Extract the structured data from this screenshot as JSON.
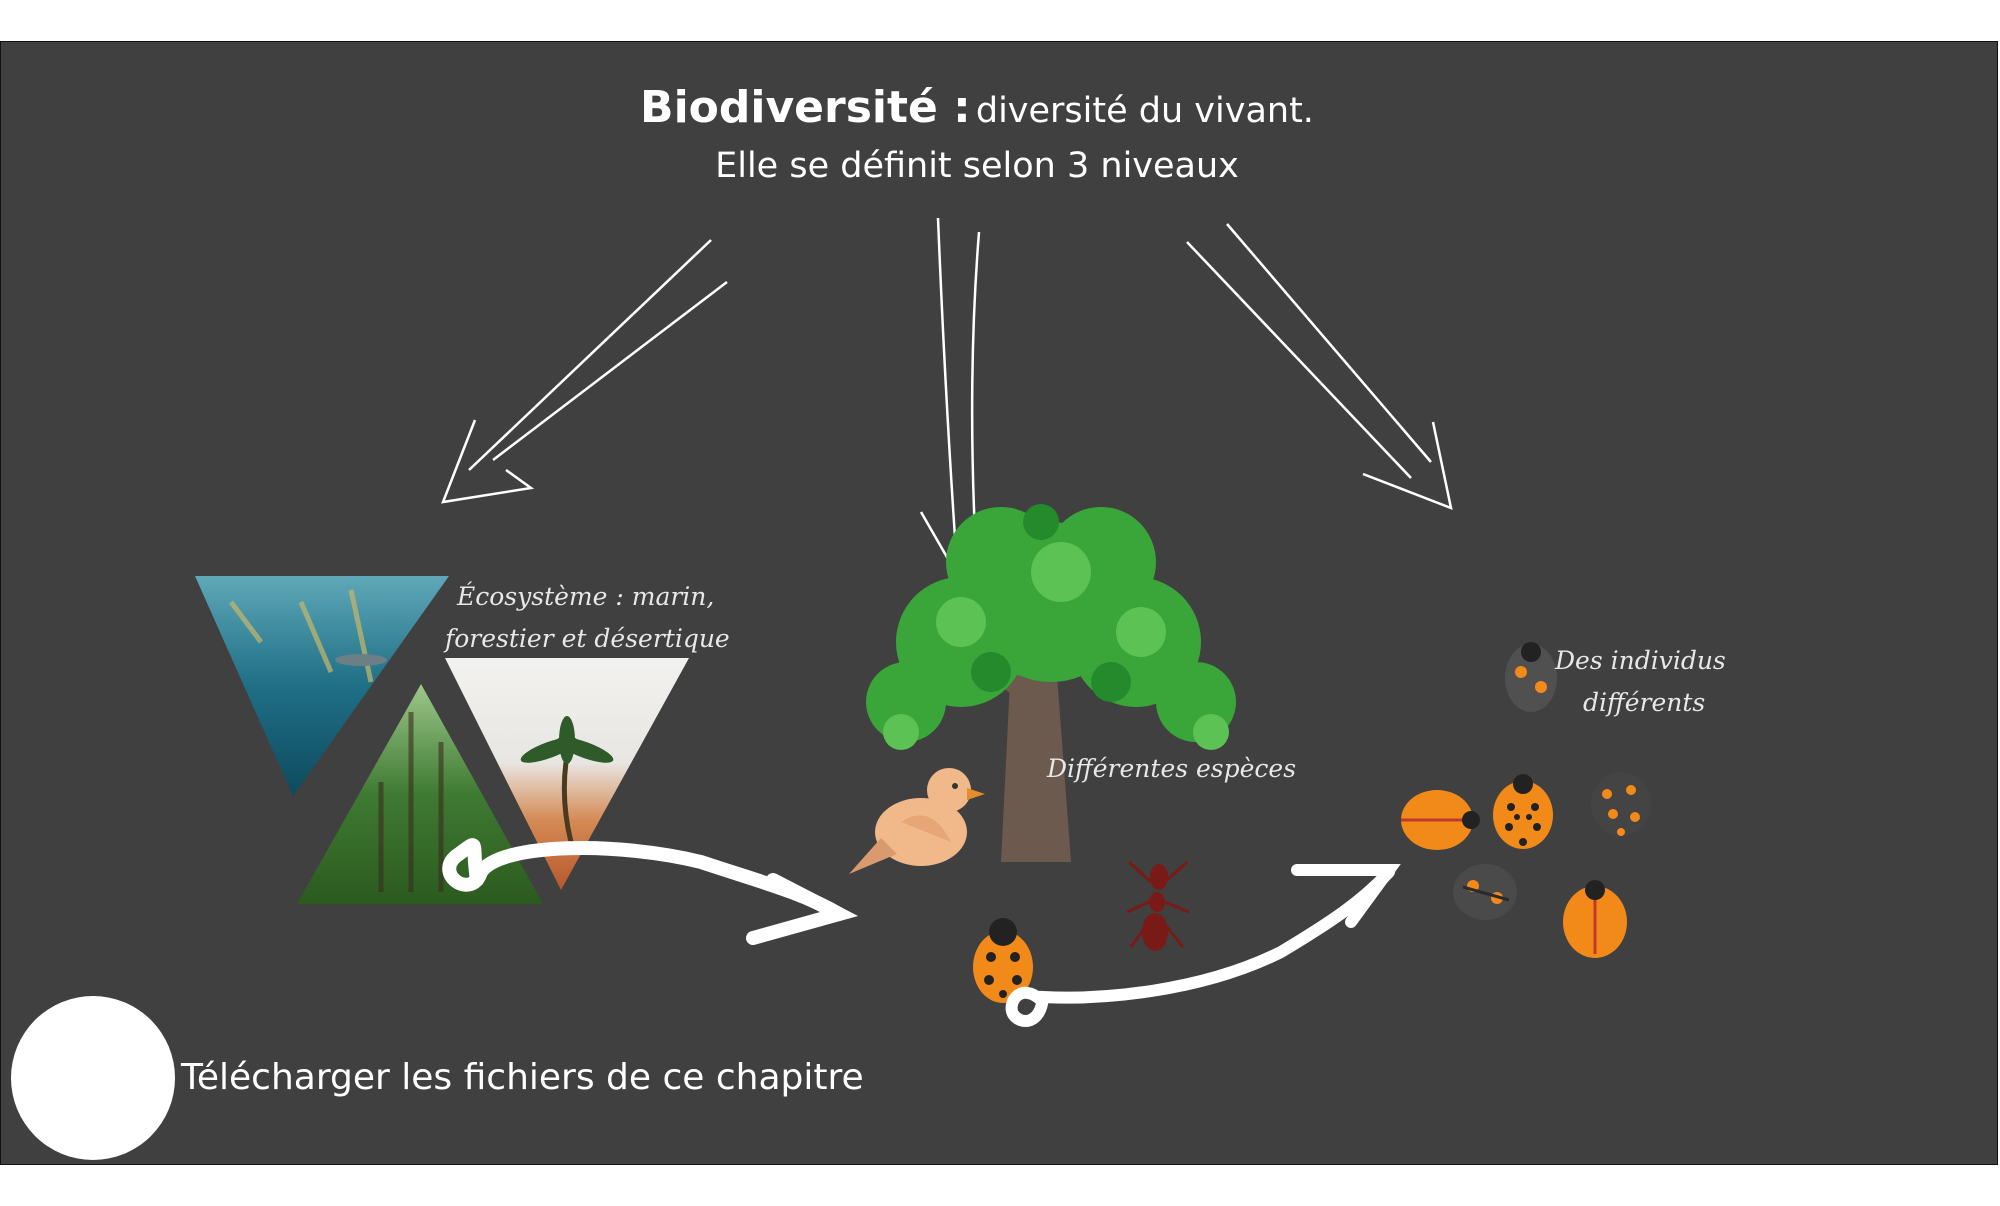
{
  "title": {
    "bold": "Biodiversité :",
    "rest": "diversité du vivant.",
    "subtitle": "Elle se définit selon 3 niveaux"
  },
  "levels": {
    "ecosystem": {
      "line1": "Écosystème : marin,",
      "line2": "forestier et désertique"
    },
    "species": {
      "label": "Différentes espèces"
    },
    "individuals": {
      "line1": "Des individus",
      "line2": "différents"
    }
  },
  "download": {
    "label": "Télécharger les fichiers de ce chapitre",
    "icon": "download-icon"
  },
  "colors": {
    "background": "#404040",
    "text": "#ffffff",
    "ladybug": "#f28a1a",
    "foliage": "#3aa63a"
  }
}
